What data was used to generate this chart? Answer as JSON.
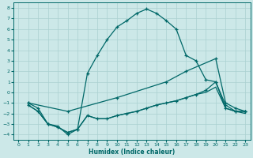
{
  "xlabel": "Humidex (Indice chaleur)",
  "background_color": "#cce8e8",
  "grid_color": "#aad0d0",
  "line_color": "#006868",
  "xlim": [
    -0.5,
    23.5
  ],
  "ylim": [
    -4.5,
    8.5
  ],
  "xticks": [
    0,
    1,
    2,
    3,
    4,
    5,
    6,
    7,
    8,
    9,
    10,
    11,
    12,
    13,
    14,
    15,
    16,
    17,
    18,
    19,
    20,
    21,
    22,
    23
  ],
  "yticks": [
    -4,
    -3,
    -2,
    -1,
    0,
    1,
    2,
    3,
    4,
    5,
    6,
    7,
    8
  ],
  "line1_peaked": {
    "x": [
      1,
      2,
      3,
      4,
      5,
      6,
      7,
      8,
      9,
      10,
      11,
      12,
      13,
      14,
      15,
      16,
      17,
      18,
      19,
      20,
      21,
      22,
      23
    ],
    "y": [
      -1,
      -1.5,
      -3.0,
      -3.2,
      -4.0,
      -3.5,
      1.8,
      3.5,
      5.0,
      6.2,
      6.8,
      7.5,
      7.9,
      7.5,
      6.8,
      6.0,
      3.5,
      3.0,
      1.2,
      1.0,
      -1.2,
      -1.8,
      -1.8
    ]
  },
  "line2_upper": {
    "x": [
      1,
      5,
      10,
      15,
      17,
      20,
      21,
      22,
      23
    ],
    "y": [
      -1,
      -1.8,
      -0.5,
      1.0,
      2.0,
      3.2,
      -1.0,
      -1.5,
      -1.8
    ]
  },
  "line3_lower1": {
    "x": [
      1,
      2,
      3,
      4,
      5,
      6,
      7,
      8,
      9,
      10,
      11,
      12,
      13,
      14,
      15,
      16,
      17,
      18,
      19,
      20,
      21,
      22,
      23
    ],
    "y": [
      -1.2,
      -1.8,
      -3.0,
      -3.3,
      -3.8,
      -3.5,
      -2.2,
      -2.5,
      -2.5,
      -2.2,
      -2.0,
      -1.8,
      -1.5,
      -1.2,
      -1.0,
      -0.8,
      -0.5,
      -0.2,
      0.2,
      1.0,
      -1.5,
      -1.8,
      -1.8
    ]
  },
  "line4_lower2": {
    "x": [
      1,
      2,
      3,
      4,
      5,
      6,
      7,
      8,
      9,
      10,
      11,
      12,
      13,
      14,
      15,
      16,
      17,
      18,
      19,
      20,
      21,
      22,
      23
    ],
    "y": [
      -1.2,
      -1.8,
      -3.0,
      -3.3,
      -3.8,
      -3.5,
      -2.2,
      -2.5,
      -2.5,
      -2.2,
      -2.0,
      -1.8,
      -1.5,
      -1.2,
      -1.0,
      -0.8,
      -0.5,
      -0.2,
      0.0,
      0.5,
      -1.5,
      -1.8,
      -2.0
    ]
  }
}
